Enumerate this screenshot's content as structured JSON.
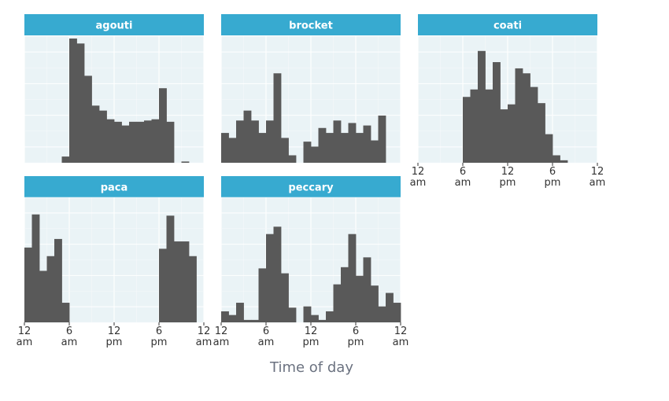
{
  "chart_data": {
    "type": "histogram",
    "xlabel": "Time of day",
    "ylabel": "",
    "x_range_hours": [
      0,
      24
    ],
    "bin_width_hours": 1,
    "bin_starts_hours": [
      0,
      1,
      2,
      3,
      4,
      5,
      6,
      7,
      8,
      9,
      10,
      11,
      12,
      13,
      14,
      15,
      16,
      17,
      18,
      19,
      20,
      21,
      22,
      23
    ],
    "x_ticks": [
      {
        "hour": 0,
        "line1": "12",
        "line2": "am"
      },
      {
        "hour": 6,
        "line1": "6",
        "line2": "am"
      },
      {
        "hour": 12,
        "line1": "12",
        "line2": "pm"
      },
      {
        "hour": 18,
        "line1": "6",
        "line2": "pm"
      },
      {
        "hour": 24,
        "line1": "12",
        "line2": "am"
      }
    ],
    "y_axis_labels_shown": false,
    "grid": true,
    "facets": [
      {
        "title": "agouti",
        "values": [
          0,
          0,
          0,
          0,
          0,
          0.05,
          1.0,
          0.96,
          0.7,
          0.46,
          0.42,
          0.35,
          0.33,
          0.3,
          0.33,
          0.33,
          0.34,
          0.35,
          0.6,
          0.33,
          0,
          0.01,
          0,
          0
        ]
      },
      {
        "title": "brocket",
        "values": [
          0.24,
          0.2,
          0.34,
          0.42,
          0.34,
          0.24,
          0.34,
          0.72,
          0.2,
          0.06,
          0,
          0.17,
          0.13,
          0.28,
          0.24,
          0.34,
          0.24,
          0.32,
          0.24,
          0.3,
          0.18,
          0.38,
          0,
          0
        ]
      },
      {
        "title": "coati",
        "values": [
          0,
          0,
          0,
          0,
          0,
          0,
          0.53,
          0.59,
          0.9,
          0.59,
          0.81,
          0.43,
          0.47,
          0.76,
          0.72,
          0.61,
          0.48,
          0.23,
          0.06,
          0.02,
          0,
          0,
          0,
          0
        ]
      },
      {
        "title": "paca",
        "values": [
          0.61,
          0.88,
          0.42,
          0.54,
          0.68,
          0.16,
          0,
          0,
          0,
          0,
          0,
          0,
          0,
          0,
          0,
          0,
          0,
          0,
          0.6,
          0.87,
          0.66,
          0.66,
          0.54,
          0
        ]
      },
      {
        "title": "peccary",
        "values": [
          0.09,
          0.06,
          0.16,
          0.02,
          0.02,
          0.44,
          0.72,
          0.78,
          0.4,
          0.12,
          0.0,
          0.13,
          0.06,
          0.02,
          0.09,
          0.31,
          0.45,
          0.72,
          0.38,
          0.53,
          0.3,
          0.13,
          0.24,
          0.16
        ]
      }
    ],
    "colors": {
      "bar": "#595959",
      "panel_bg": "#eaf3f6",
      "grid_major": "#ffffff",
      "grid_minor": "#f5f9fb",
      "strip_bg": "#37aad0",
      "strip_text": "#ffffff",
      "axis_text": "#333333",
      "title_text": "#6b7280"
    }
  }
}
